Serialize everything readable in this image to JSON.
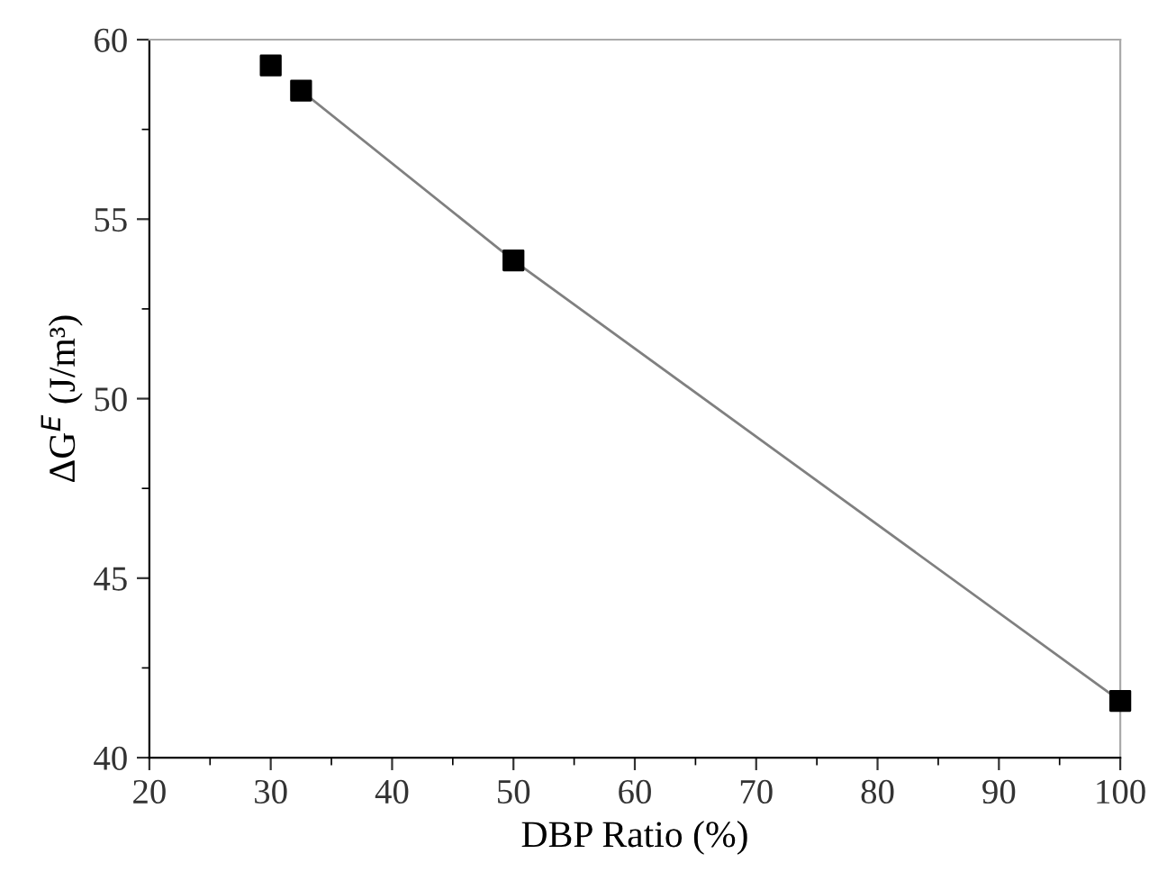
{
  "chart_data": {
    "type": "scatter",
    "xlabel": "DBP Ratio (%)",
    "ylabel": "ΔG$^{E}$ (J/m³)",
    "xlim": [
      20,
      100
    ],
    "xticks": [
      20,
      30,
      40,
      50,
      60,
      70,
      80,
      90,
      100
    ],
    "ylim": [
      40,
      60
    ],
    "yticks": [
      40,
      45,
      50,
      55,
      60
    ],
    "grid": false,
    "legend": false,
    "series": [
      {
        "type": "line",
        "color": "#808080",
        "x": [
          32.5,
          50,
          100
        ],
        "values": [
          58.58,
          53.85,
          41.58
        ],
        "marker": "none",
        "line_style": "solid"
      },
      {
        "color": "#000000",
        "x": [
          30,
          32.5,
          50,
          100
        ],
        "values": [
          59.28,
          58.58,
          53.85,
          41.58
        ],
        "marker": "square"
      }
    ]
  }
}
